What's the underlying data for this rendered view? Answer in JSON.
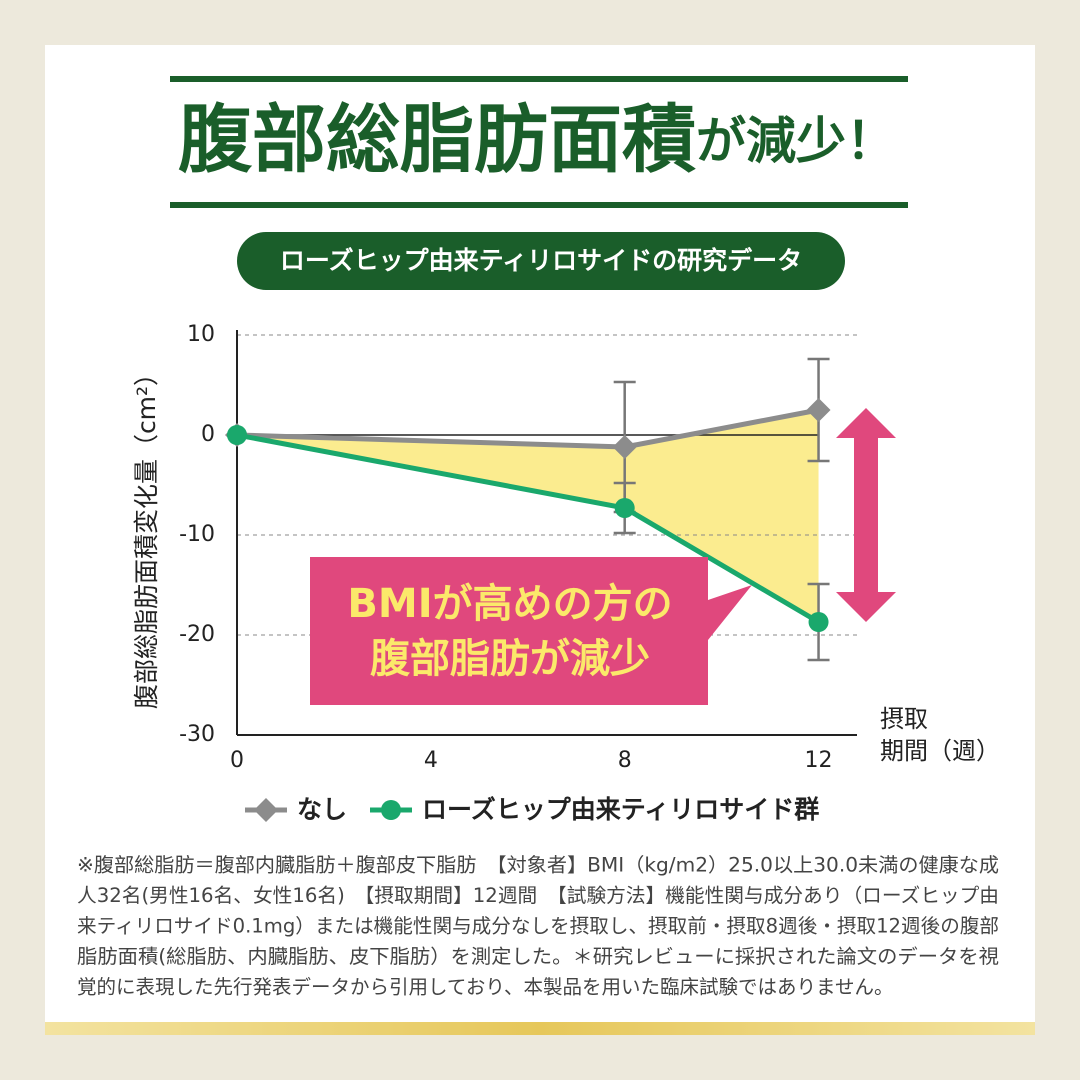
{
  "header": {
    "title": "腹部総脂肪面積",
    "title_suffix": "が減少！",
    "badge": "ローズヒップ由来ティリロサイドの研究データ"
  },
  "chart_data": {
    "type": "line",
    "ylabel": "腹部総脂肪面積変化量（cm²）",
    "xlabel": [
      "摂取",
      "期間（週）"
    ],
    "x": [
      0,
      8,
      12
    ],
    "xlim": [
      0,
      13
    ],
    "xticks": [
      0,
      4,
      8,
      12
    ],
    "ylim": [
      -30,
      10
    ],
    "yticks": [
      10,
      0,
      -10,
      -20,
      -30
    ],
    "grid": true,
    "series": [
      {
        "name": "なし",
        "color": "#8c8c8c",
        "marker": "diamond",
        "values": [
          0,
          -1.2,
          2.5
        ],
        "errors": [
          null,
          6.5,
          5.1
        ]
      },
      {
        "name": "ローズヒップ由来ティリロサイド群",
        "color": "#1aa86c",
        "marker": "circle",
        "values": [
          0,
          -7.3,
          -18.7
        ],
        "errors": [
          null,
          2.5,
          3.8
        ]
      }
    ],
    "annotation": [
      "BMIが高めの方の",
      "腹部脂肪が減少"
    ]
  },
  "footnote": [
    "※腹部総脂肪＝腹部内臓脂肪＋腹部皮下脂肪　【対象者】BMI（kg/m2）25.0以上30.0未満の健康な成",
    "人32名(男性16名、女性16名)　【摂取期間】12週間　【試験方法】機能性関与成分あり（ローズヒップ由",
    "来ティリロサイド0.1mg）または機能性関与成分なしを摂取し、摂取前・摂取8週後・摂取12週後の腹部",
    "脂肪面積(総脂肪、内臓脂肪、皮下脂肪）を測定した。＊研究レビューに採択された論文のデータを視",
    "覚的に表現した先行発表データから引用しており、本製品を用いた臨床試験ではありません。"
  ]
}
